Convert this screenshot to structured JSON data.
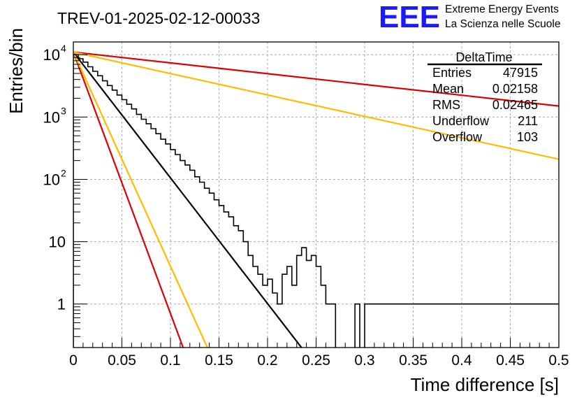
{
  "header": {
    "run_title": "TREV-01-2025-02-12-00033",
    "logo_text": "EEE",
    "logo_line1": "Extreme Energy Events",
    "logo_line2": "La Scienza nelle Scuole"
  },
  "stats_box": {
    "title": "DeltaTime",
    "rows": [
      {
        "label": "Entries",
        "value": "47915"
      },
      {
        "label": "Mean",
        "value": "0.02158"
      },
      {
        "label": "RMS",
        "value": "0.02465"
      },
      {
        "label": "Underflow",
        "value": "211"
      },
      {
        "label": "Overflow",
        "value": "103"
      }
    ]
  },
  "colors": {
    "histogram": "#000000",
    "fit_black": "#000000",
    "fit_red": "#dd0000",
    "fit_orange": "#ffbb00",
    "grid": "#aaaaaa",
    "logo_blue": "#1a1aff"
  },
  "chart_data": {
    "type": "line",
    "title": "",
    "xlabel": "Time difference [s]",
    "ylabel": "Entries/bin",
    "xlim": [
      0,
      0.5
    ],
    "ylim": [
      0.2,
      16000
    ],
    "yscale": "log",
    "grid": true,
    "legend": "none",
    "x_ticks": [
      "0",
      "0.05",
      "0.1",
      "0.15",
      "0.2",
      "0.25",
      "0.3",
      "0.35",
      "0.4",
      "0.45",
      "0.5"
    ],
    "y_ticks": [
      {
        "value": 1,
        "base": "1",
        "exp": ""
      },
      {
        "value": 10,
        "base": "10",
        "exp": ""
      },
      {
        "value": 100,
        "base": "10",
        "exp": "2"
      },
      {
        "value": 1000,
        "base": "10",
        "exp": "3"
      },
      {
        "value": 10000,
        "base": "10",
        "exp": "4"
      }
    ],
    "histogram": {
      "bin_width": 0.005,
      "x_start": 0,
      "values": [
        10000,
        8600,
        7600,
        6400,
        5400,
        4600,
        3800,
        3200,
        2700,
        2250,
        1900,
        1600,
        1350,
        1100,
        920,
        780,
        650,
        540,
        440,
        370,
        300,
        250,
        200,
        170,
        140,
        110,
        90,
        72,
        60,
        47,
        38,
        30,
        25,
        18,
        15,
        10,
        6,
        4,
        3,
        2,
        2.5,
        1.5,
        1,
        3,
        4,
        2,
        6,
        8,
        5,
        6,
        4,
        2,
        1,
        1,
        0,
        0,
        0,
        0,
        1,
        0,
        1,
        1,
        1,
        1,
        1,
        1,
        1,
        1,
        1,
        1,
        1,
        1,
        1,
        1,
        1,
        1,
        1,
        1,
        1,
        1,
        1,
        1,
        1,
        1,
        1,
        1,
        1,
        1,
        1,
        1,
        1,
        1,
        1,
        1,
        1,
        1,
        1,
        1,
        1,
        1
      ]
    },
    "series": [
      {
        "color": "#000000",
        "points": [
          [
            0,
            11000
          ],
          [
            0.235,
            0.2
          ]
        ]
      },
      {
        "color": "#dd0000",
        "points": [
          [
            0,
            11000
          ],
          [
            0.113,
            0.2
          ]
        ]
      },
      {
        "color": "#ffbb00",
        "points": [
          [
            0,
            11000
          ],
          [
            0.138,
            0.2
          ]
        ]
      },
      {
        "color": "#dd0000",
        "points": [
          [
            0,
            11000
          ],
          [
            0.5,
            1500
          ]
        ]
      },
      {
        "color": "#ffbb00",
        "points": [
          [
            0,
            11000
          ],
          [
            0.5,
            210
          ]
        ]
      }
    ]
  }
}
